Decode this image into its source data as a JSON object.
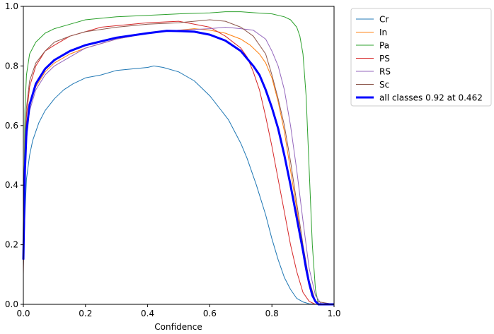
{
  "chart_data": {
    "type": "line",
    "title": "",
    "xlabel": "Confidence",
    "ylabel": "",
    "xlim": [
      0,
      1
    ],
    "ylim": [
      0,
      1
    ],
    "xticks": [
      "0.0",
      "0.2",
      "0.4",
      "0.6",
      "0.8",
      "1.0"
    ],
    "yticks": [
      "0.0",
      "0.2",
      "0.4",
      "0.6",
      "0.8",
      "1.0"
    ],
    "grid": false,
    "legend_position": "outside-top-right",
    "series": [
      {
        "name": "Cr",
        "color": "#1f77b4",
        "width": 1,
        "x": [
          0,
          0.005,
          0.01,
          0.02,
          0.03,
          0.05,
          0.07,
          0.1,
          0.13,
          0.16,
          0.2,
          0.25,
          0.3,
          0.35,
          0.4,
          0.42,
          0.45,
          0.5,
          0.55,
          0.6,
          0.63,
          0.66,
          0.7,
          0.72,
          0.75,
          0.78,
          0.8,
          0.82,
          0.84,
          0.86,
          0.88,
          0.9,
          0.92,
          0.95,
          1.0
        ],
        "y": [
          0.13,
          0.3,
          0.42,
          0.5,
          0.55,
          0.61,
          0.65,
          0.69,
          0.72,
          0.74,
          0.76,
          0.77,
          0.785,
          0.79,
          0.795,
          0.8,
          0.795,
          0.78,
          0.75,
          0.7,
          0.66,
          0.62,
          0.54,
          0.49,
          0.4,
          0.3,
          0.22,
          0.15,
          0.09,
          0.05,
          0.02,
          0.008,
          0.002,
          0,
          0
        ]
      },
      {
        "name": "In",
        "color": "#ff7f0e",
        "width": 1,
        "x": [
          0,
          0.005,
          0.01,
          0.02,
          0.04,
          0.07,
          0.1,
          0.15,
          0.2,
          0.3,
          0.4,
          0.5,
          0.55,
          0.6,
          0.65,
          0.7,
          0.73,
          0.76,
          0.78,
          0.8,
          0.82,
          0.84,
          0.86,
          0.88,
          0.9,
          0.91,
          0.92,
          0.93,
          0.94,
          0.95,
          1.0
        ],
        "y": [
          0.15,
          0.45,
          0.58,
          0.67,
          0.73,
          0.78,
          0.81,
          0.84,
          0.86,
          0.89,
          0.91,
          0.92,
          0.925,
          0.92,
          0.91,
          0.89,
          0.87,
          0.84,
          0.81,
          0.76,
          0.68,
          0.58,
          0.45,
          0.32,
          0.18,
          0.12,
          0.07,
          0.03,
          0.01,
          0,
          0
        ]
      },
      {
        "name": "Pa",
        "color": "#2ca02c",
        "width": 1,
        "x": [
          0,
          0.005,
          0.01,
          0.02,
          0.04,
          0.07,
          0.1,
          0.15,
          0.2,
          0.3,
          0.4,
          0.5,
          0.6,
          0.65,
          0.7,
          0.75,
          0.8,
          0.84,
          0.86,
          0.88,
          0.89,
          0.9,
          0.91,
          0.92,
          0.93,
          0.94,
          0.95,
          1.0
        ],
        "y": [
          0.15,
          0.65,
          0.77,
          0.84,
          0.88,
          0.91,
          0.925,
          0.94,
          0.955,
          0.965,
          0.97,
          0.975,
          0.978,
          0.982,
          0.982,
          0.978,
          0.975,
          0.965,
          0.955,
          0.93,
          0.9,
          0.84,
          0.7,
          0.45,
          0.2,
          0.05,
          0,
          0
        ]
      },
      {
        "name": "PS",
        "color": "#d62728",
        "width": 1,
        "x": [
          0,
          0.005,
          0.01,
          0.02,
          0.04,
          0.07,
          0.1,
          0.15,
          0.2,
          0.25,
          0.3,
          0.4,
          0.5,
          0.55,
          0.6,
          0.65,
          0.7,
          0.72,
          0.74,
          0.76,
          0.78,
          0.8,
          0.82,
          0.84,
          0.86,
          0.88,
          0.9,
          0.92,
          0.94,
          1.0
        ],
        "y": [
          0.1,
          0.5,
          0.63,
          0.73,
          0.8,
          0.85,
          0.87,
          0.9,
          0.915,
          0.93,
          0.935,
          0.945,
          0.95,
          0.94,
          0.93,
          0.9,
          0.86,
          0.83,
          0.78,
          0.72,
          0.63,
          0.53,
          0.42,
          0.31,
          0.2,
          0.11,
          0.04,
          0.01,
          0,
          0
        ]
      },
      {
        "name": "RS",
        "color": "#9467bd",
        "width": 1,
        "x": [
          0,
          0.005,
          0.01,
          0.02,
          0.04,
          0.07,
          0.1,
          0.15,
          0.2,
          0.3,
          0.4,
          0.5,
          0.6,
          0.65,
          0.7,
          0.74,
          0.78,
          0.8,
          0.82,
          0.84,
          0.86,
          0.88,
          0.9,
          0.92,
          0.94,
          0.96,
          1.0
        ],
        "y": [
          0.15,
          0.43,
          0.55,
          0.65,
          0.72,
          0.77,
          0.8,
          0.83,
          0.86,
          0.89,
          0.91,
          0.92,
          0.925,
          0.93,
          0.925,
          0.92,
          0.89,
          0.85,
          0.8,
          0.72,
          0.6,
          0.45,
          0.28,
          0.12,
          0.03,
          0,
          0
        ]
      },
      {
        "name": "Sc",
        "color": "#8c564b",
        "width": 1,
        "x": [
          0,
          0.005,
          0.01,
          0.02,
          0.04,
          0.07,
          0.1,
          0.15,
          0.2,
          0.3,
          0.4,
          0.5,
          0.55,
          0.6,
          0.65,
          0.7,
          0.74,
          0.78,
          0.8,
          0.82,
          0.84,
          0.86,
          0.88,
          0.9,
          0.92,
          0.94,
          1.0
        ],
        "y": [
          0.12,
          0.55,
          0.66,
          0.75,
          0.81,
          0.85,
          0.88,
          0.9,
          0.915,
          0.93,
          0.94,
          0.945,
          0.95,
          0.955,
          0.95,
          0.93,
          0.9,
          0.84,
          0.77,
          0.69,
          0.6,
          0.48,
          0.34,
          0.2,
          0.08,
          0.01,
          0
        ]
      },
      {
        "name": "all classes 0.92 at 0.462",
        "color": "#0000ff",
        "width": 3,
        "x": [
          0,
          0.005,
          0.01,
          0.02,
          0.04,
          0.07,
          0.1,
          0.15,
          0.2,
          0.3,
          0.4,
          0.462,
          0.5,
          0.55,
          0.6,
          0.65,
          0.7,
          0.74,
          0.76,
          0.78,
          0.8,
          0.82,
          0.84,
          0.86,
          0.88,
          0.9,
          0.91,
          0.92,
          0.93,
          0.94,
          0.95,
          1.0
        ],
        "y": [
          0.15,
          0.45,
          0.58,
          0.67,
          0.74,
          0.79,
          0.82,
          0.85,
          0.87,
          0.895,
          0.91,
          0.918,
          0.917,
          0.915,
          0.905,
          0.885,
          0.85,
          0.8,
          0.77,
          0.72,
          0.66,
          0.59,
          0.5,
          0.4,
          0.29,
          0.18,
          0.12,
          0.07,
          0.03,
          0.01,
          0,
          0
        ]
      }
    ]
  }
}
